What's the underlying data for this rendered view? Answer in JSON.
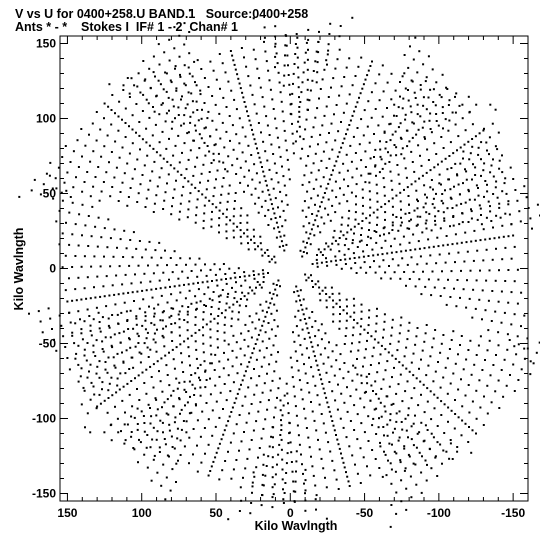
{
  "header": {
    "line1": "V vs U for 0400+258.U BAND.1   Source:0400+258",
    "line2": "Ants * - *    Stokes I  IF# 1 - 2  Chan# 1"
  },
  "chart_data": {
    "type": "scatter",
    "xlabel": "Kilo Wavlngth",
    "ylabel": "Kilo Wavlngth",
    "xlim": [
      155,
      -160
    ],
    "ylim": [
      -155,
      155
    ],
    "x_ticks": [
      150,
      100,
      50,
      0,
      -50,
      -100,
      -150
    ],
    "y_ticks": [
      150,
      100,
      50,
      0,
      -50,
      -100,
      -150
    ],
    "marker_color": "#000000",
    "arms": [
      {
        "from": [
          -18,
          9
        ],
        "to": [
          -130,
          92
        ]
      },
      {
        "from": [
          18,
          -9
        ],
        "to": [
          130,
          -92
        ]
      },
      {
        "from": [
          -8,
          8
        ],
        "to": [
          -55,
          138
        ]
      },
      {
        "from": [
          8,
          -8
        ],
        "to": [
          55,
          -138
        ]
      },
      {
        "from": [
          10,
          4
        ],
        "to": [
          125,
          110
        ]
      },
      {
        "from": [
          -10,
          -4
        ],
        "to": [
          -125,
          -110
        ]
      },
      {
        "from": [
          15,
          -3
        ],
        "to": [
          150,
          -22
        ]
      },
      {
        "from": [
          -15,
          3
        ],
        "to": [
          -150,
          22
        ]
      },
      {
        "from": [
          -4,
          -12
        ],
        "to": [
          -40,
          -145
        ]
      },
      {
        "from": [
          4,
          12
        ],
        "to": [
          40,
          145
        ]
      }
    ]
  }
}
